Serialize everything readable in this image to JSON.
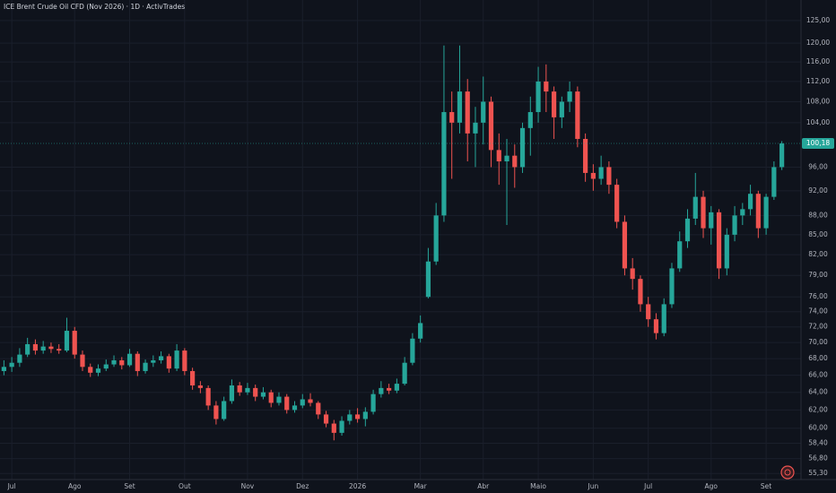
{
  "chart_data": {
    "type": "candlestick",
    "title": "ICE Brent Crude Oil CFD (Nov 2026) · 1D · ActivTrades",
    "log_scale": true,
    "grid": true,
    "up_color": "#26a69a",
    "down_color": "#ef5350",
    "categories": [
      null,
      "Jul",
      null,
      null,
      null,
      null,
      null,
      null,
      null,
      "Ago",
      null,
      null,
      null,
      null,
      null,
      null,
      "Set",
      null,
      null,
      null,
      null,
      null,
      null,
      "Out",
      null,
      null,
      null,
      null,
      null,
      null,
      null,
      "Nov",
      null,
      null,
      null,
      null,
      null,
      null,
      "Dez",
      null,
      null,
      null,
      null,
      null,
      null,
      "2026",
      null,
      null,
      null,
      null,
      null,
      null,
      null,
      "Mar",
      null,
      null,
      null,
      null,
      null,
      null,
      null,
      "Abr",
      null,
      null,
      null,
      null,
      null,
      null,
      "Maio",
      null,
      null,
      null,
      null,
      null,
      null,
      "Jun",
      null,
      null,
      null,
      null,
      null,
      null,
      "Jul",
      null,
      null,
      null,
      null,
      null,
      null,
      null,
      "Ago",
      null,
      null,
      null,
      null,
      null,
      null,
      "Set",
      null,
      null
    ],
    "open": [
      66.5,
      67.0,
      67.5,
      68.5,
      69.8,
      69.0,
      69.5,
      69.2,
      69.0,
      71.5,
      68.5,
      67.0,
      66.3,
      66.8,
      67.3,
      67.8,
      67.2,
      68.6,
      66.5,
      67.5,
      67.8,
      68.3,
      66.8,
      69.0,
      66.5,
      64.8,
      64.5,
      62.5,
      61.0,
      63.0,
      64.8,
      64.0,
      64.5,
      63.5,
      64.0,
      62.8,
      63.5,
      62.0,
      62.5,
      63.2,
      62.8,
      61.5,
      60.5,
      59.5,
      60.8,
      61.5,
      61.0,
      61.8,
      63.8,
      64.5,
      64.2,
      65.0,
      67.5,
      70.5,
      76.0,
      81.0,
      88.0,
      106.0,
      104.0,
      110.0,
      102.0,
      104.0,
      108.0,
      99.0,
      97.0,
      98.0,
      96.0,
      103.0,
      106.0,
      112.0,
      110.0,
      105.0,
      108.0,
      110.0,
      101.0,
      95.0,
      94.0,
      96.0,
      93.0,
      87.0,
      80.0,
      78.5,
      75.0,
      73.0,
      71.2,
      75.0,
      80.0,
      84.0,
      87.5,
      91.0,
      86.0,
      88.5,
      80.0,
      85.0,
      88.0,
      89.0,
      91.5,
      86.0,
      91.0,
      96.0
    ],
    "high": [
      67.8,
      68.2,
      69.3,
      70.6,
      70.4,
      70.2,
      70.0,
      69.8,
      73.2,
      72.0,
      69.0,
      67.4,
      67.3,
      67.9,
      68.4,
      68.2,
      69.2,
      68.9,
      67.9,
      68.4,
      68.9,
      68.6,
      69.8,
      69.3,
      66.9,
      65.3,
      64.8,
      63.0,
      63.5,
      65.5,
      65.2,
      65.1,
      64.9,
      64.6,
      64.3,
      64.0,
      63.8,
      63.0,
      63.8,
      63.9,
      63.0,
      61.9,
      60.9,
      61.3,
      62.0,
      62.2,
      62.3,
      64.3,
      65.3,
      65.0,
      65.6,
      68.2,
      71.2,
      73.5,
      83.0,
      90.0,
      119.5,
      110.0,
      119.5,
      112.5,
      107.0,
      113.0,
      109.0,
      102.0,
      101.0,
      100.0,
      104.0,
      109.0,
      115.0,
      115.5,
      111.0,
      109.0,
      112.0,
      111.0,
      102.0,
      96.5,
      98.0,
      97.0,
      94.0,
      88.0,
      81.5,
      79.0,
      76.0,
      73.8,
      75.8,
      80.8,
      85.5,
      89.0,
      95.0,
      92.0,
      89.5,
      89.0,
      86.0,
      89.5,
      90.0,
      93.0,
      92.0,
      91.5,
      97.0,
      100.6
    ],
    "low": [
      66.0,
      66.4,
      67.0,
      68.2,
      68.5,
      68.6,
      68.7,
      68.6,
      68.8,
      68.0,
      66.5,
      65.8,
      65.9,
      66.5,
      67.0,
      66.7,
      67.0,
      65.9,
      66.2,
      67.0,
      67.4,
      66.3,
      66.5,
      66.0,
      64.3,
      63.9,
      62.0,
      60.4,
      60.8,
      62.7,
      63.6,
      63.7,
      63.0,
      63.2,
      62.3,
      62.5,
      61.6,
      61.7,
      62.2,
      62.4,
      61.0,
      60.1,
      58.7,
      59.2,
      60.4,
      60.6,
      60.2,
      61.5,
      63.4,
      63.8,
      63.9,
      64.8,
      67.2,
      70.0,
      75.8,
      80.5,
      87.0,
      94.0,
      102.0,
      97.0,
      96.0,
      100.0,
      96.0,
      93.0,
      86.5,
      92.5,
      95.0,
      98.0,
      104.0,
      106.0,
      101.0,
      103.0,
      106.0,
      99.5,
      93.5,
      92.0,
      93.0,
      91.5,
      86.0,
      79.0,
      77.0,
      74.0,
      72.0,
      70.4,
      70.8,
      74.5,
      79.5,
      83.0,
      86.5,
      84.5,
      83.5,
      78.5,
      79.0,
      84.0,
      86.5,
      88.0,
      84.5,
      85.0,
      90.5,
      95.5
    ],
    "close": [
      67.0,
      67.5,
      68.5,
      69.8,
      69.0,
      69.5,
      69.2,
      69.0,
      71.5,
      68.5,
      67.0,
      66.3,
      66.8,
      67.3,
      67.8,
      67.2,
      68.6,
      66.5,
      67.5,
      67.8,
      68.3,
      66.8,
      69.0,
      66.5,
      64.8,
      64.5,
      62.5,
      61.0,
      63.0,
      64.8,
      64.0,
      64.5,
      63.5,
      64.0,
      62.8,
      63.5,
      62.0,
      62.5,
      63.2,
      62.8,
      61.5,
      60.5,
      59.5,
      60.8,
      61.5,
      61.0,
      61.8,
      63.8,
      64.5,
      64.2,
      65.0,
      67.5,
      70.5,
      72.5,
      81.0,
      88.0,
      106.0,
      104.0,
      110.0,
      102.0,
      104.0,
      108.0,
      99.0,
      97.0,
      98.0,
      96.0,
      103.0,
      106.0,
      112.0,
      110.0,
      105.0,
      108.0,
      110.0,
      101.0,
      95.0,
      94.0,
      96.0,
      93.0,
      87.0,
      80.0,
      78.5,
      75.0,
      73.0,
      71.2,
      75.0,
      80.0,
      84.0,
      87.5,
      91.0,
      86.0,
      88.5,
      80.0,
      85.0,
      88.0,
      89.0,
      91.5,
      86.0,
      91.0,
      96.0,
      100.18
    ],
    "ylim": [
      54.7,
      129.7
    ],
    "yticks": [
      {
        "value": 125,
        "label": "125,00"
      },
      {
        "value": 120,
        "label": "120,00"
      },
      {
        "value": 116,
        "label": "116,00"
      },
      {
        "value": 112,
        "label": "112,00"
      },
      {
        "value": 108,
        "label": "108,00"
      },
      {
        "value": 104,
        "label": "104,00"
      },
      {
        "value": 96,
        "label": "96,00"
      },
      {
        "value": 92,
        "label": "92,00"
      },
      {
        "value": 88,
        "label": "88,00"
      },
      {
        "value": 85,
        "label": "85,00"
      },
      {
        "value": 82,
        "label": "82,00"
      },
      {
        "value": 79,
        "label": "79,00"
      },
      {
        "value": 76,
        "label": "76,00"
      },
      {
        "value": 74,
        "label": "74,00"
      },
      {
        "value": 72,
        "label": "72,00"
      },
      {
        "value": 70,
        "label": "70,00"
      },
      {
        "value": 68,
        "label": "68,00"
      },
      {
        "value": 66,
        "label": "66,00"
      },
      {
        "value": 64,
        "label": "64,00"
      },
      {
        "value": 62,
        "label": "62,00"
      },
      {
        "value": 60,
        "label": "60,00"
      },
      {
        "value": 58.4,
        "label": "58,40"
      },
      {
        "value": 56.8,
        "label": "56,80"
      },
      {
        "value": 55.3,
        "label": "55,30"
      }
    ],
    "last_price": {
      "value": 100.18,
      "label": "100,18"
    }
  }
}
